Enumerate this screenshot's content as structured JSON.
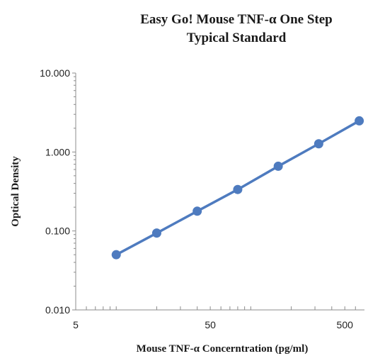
{
  "chart_data": {
    "type": "line",
    "title_line1": "Easy Go! Mouse TNF-α One Step",
    "title_line2": "Typical Standard",
    "xlabel": "Mouse TNF-α Concerntration (pg/ml)",
    "ylabel": "Optical Density",
    "x_scale": "log",
    "y_scale": "log",
    "xlim": [
      5,
      700
    ],
    "ylim": [
      0.01,
      10
    ],
    "x_ticks": [
      5,
      50,
      500
    ],
    "x_tick_labels": [
      "5",
      "50",
      "500"
    ],
    "y_ticks": [
      0.01,
      0.1,
      1,
      10
    ],
    "y_tick_labels": [
      "0.010",
      "0.100",
      "1.000",
      "10.000"
    ],
    "grid": false,
    "legend": "none",
    "series": [
      {
        "color": "#4e7bbf",
        "x": [
          10,
          20,
          40,
          80,
          160,
          320,
          640
        ],
        "y": [
          0.05,
          0.094,
          0.178,
          0.335,
          0.66,
          1.27,
          2.48
        ]
      }
    ]
  }
}
